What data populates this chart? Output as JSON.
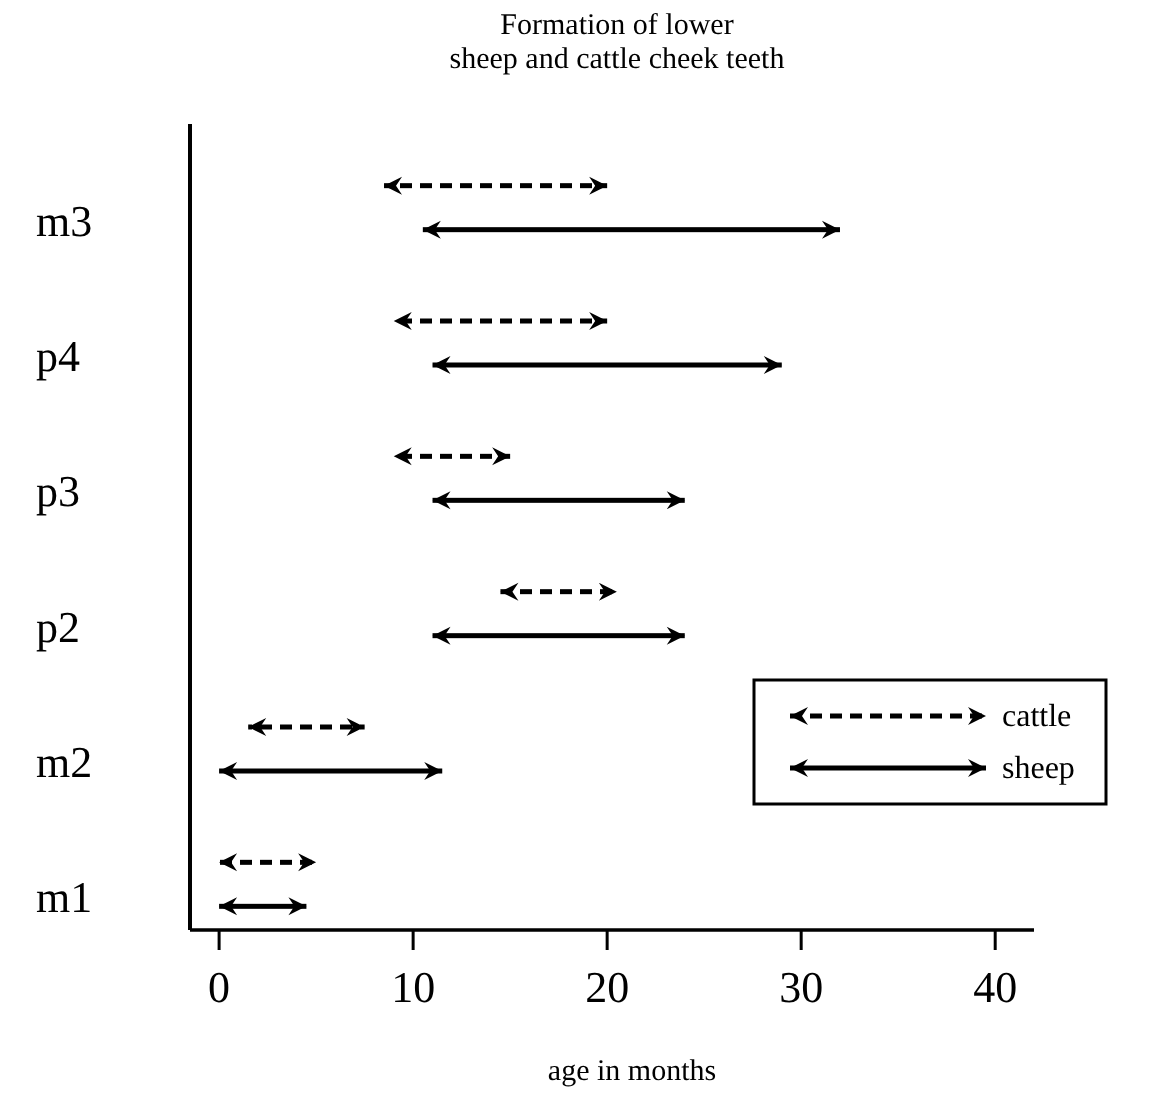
{
  "chart_data": {
    "type": "bar",
    "orientation": "horizontal",
    "title": "Formation of lower\nsheep and cattle cheek teeth",
    "xlabel": "age in months",
    "categories": [
      "m3",
      "p4",
      "p3",
      "p2",
      "m2",
      "m1"
    ],
    "series": [
      {
        "name": "cattle",
        "color": "#000000",
        "line_style": "dashed",
        "base": [
          8.5,
          9,
          9,
          14.5,
          1.5,
          0
        ],
        "values": [
          11.5,
          11,
          6,
          6,
          6,
          5
        ]
      },
      {
        "name": "sheep",
        "color": "#000000",
        "line_style": "solid",
        "base": [
          10.5,
          11,
          11,
          11,
          0,
          0
        ],
        "values": [
          21.5,
          18,
          13,
          13,
          11.5,
          4.5
        ]
      }
    ],
    "xlim": [
      -1.5,
      42
    ],
    "xticks": [
      0,
      10,
      20,
      30,
      40
    ],
    "legend": "right"
  }
}
